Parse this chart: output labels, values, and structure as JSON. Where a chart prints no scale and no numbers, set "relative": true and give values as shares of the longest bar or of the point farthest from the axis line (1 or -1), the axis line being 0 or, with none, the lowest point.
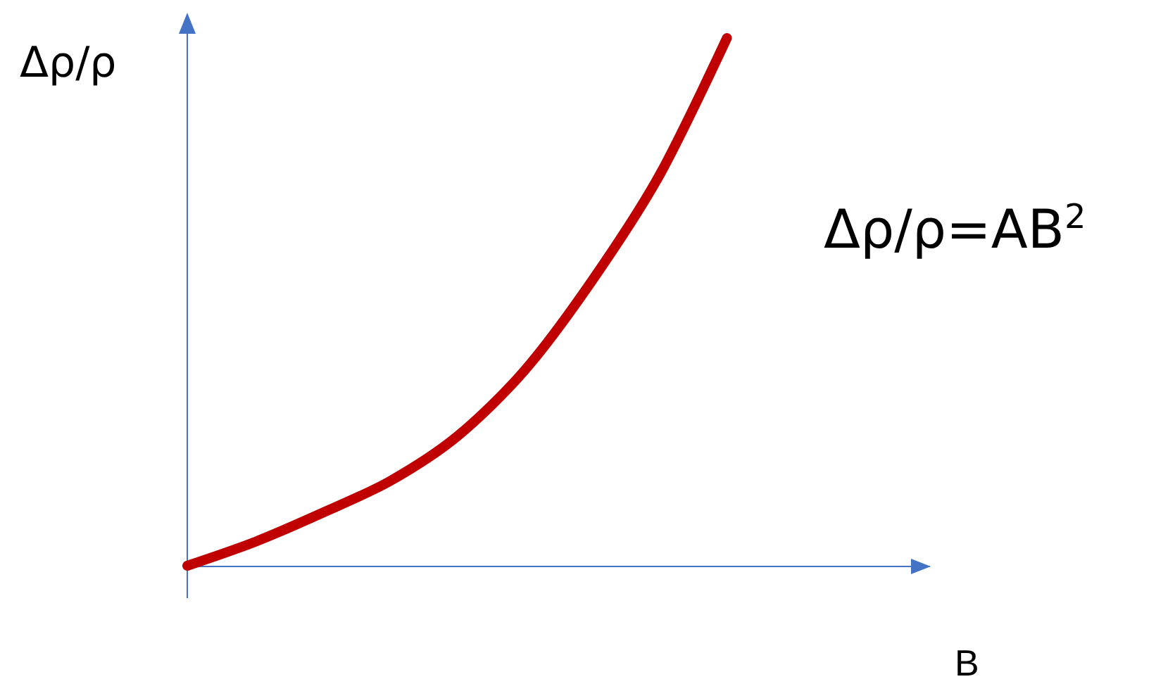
{
  "chart_data": {
    "type": "line",
    "relative": true,
    "xlabel": "B",
    "ylabel": "Δρ/ρ",
    "annotations": [
      "Δρ/ρ=AB$^{2}$"
    ],
    "categories": [
      null,
      null,
      null,
      null,
      null,
      null,
      null,
      null,
      null,
      null,
      null,
      null
    ],
    "series": [
      {
        "color": "#c00000",
        "values": [
          0,
          0.045,
          0.1,
          0.16,
          0.245,
          0.37,
          0.54,
          0.74,
          1.0,
          null,
          null,
          null
        ]
      }
    ],
    "grid": false,
    "line_style": "solid"
  }
}
